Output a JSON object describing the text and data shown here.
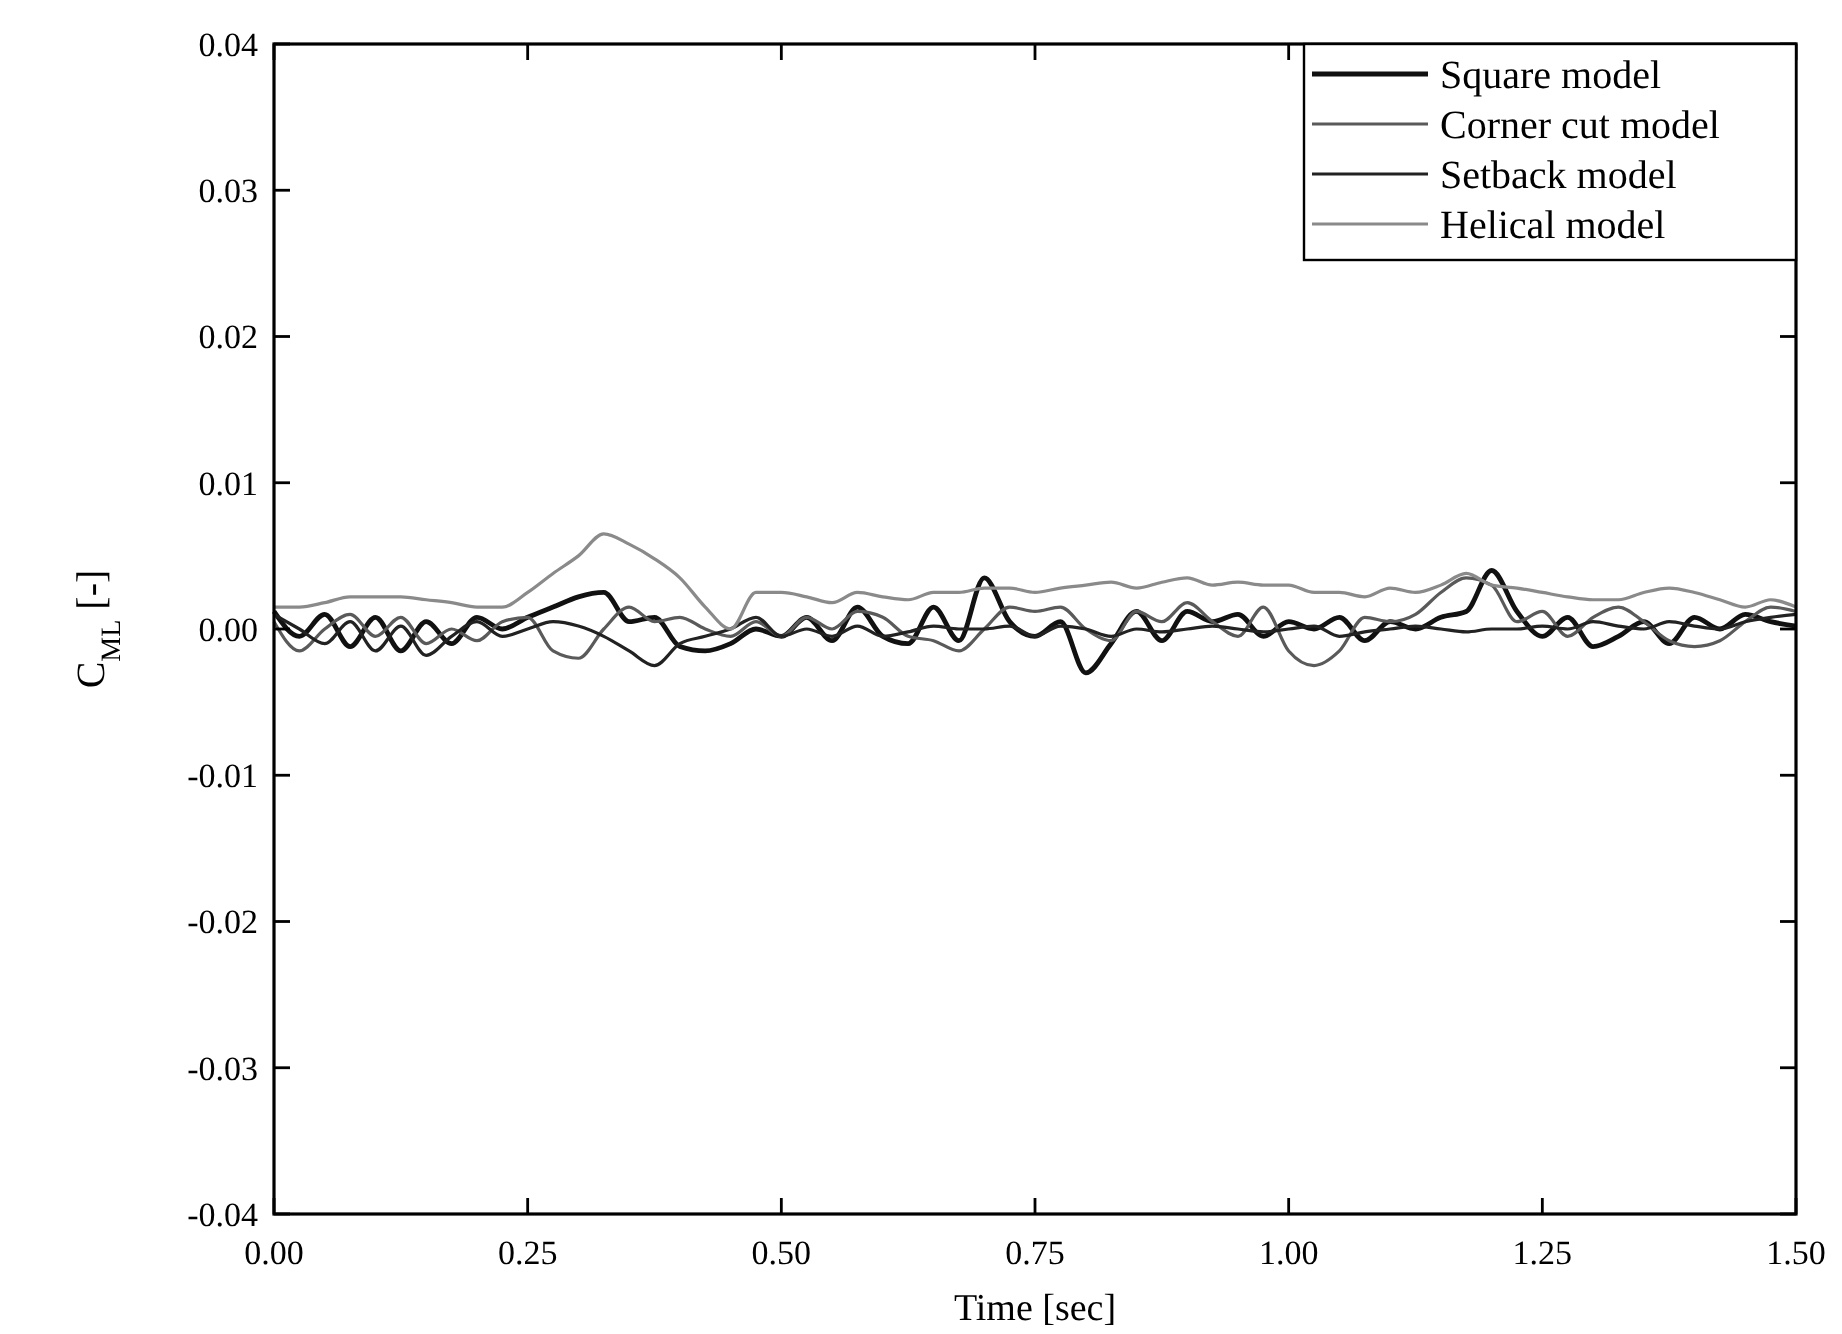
{
  "chart_data": {
    "type": "line",
    "xlabel": "Time [sec]",
    "ylabel": "C$_{ML}$ [-]",
    "xlim": [
      0,
      1.5
    ],
    "ylim": [
      -0.04,
      0.04
    ],
    "xticks": [
      {
        "value": 0,
        "label": "0.00"
      },
      0.25,
      {
        "value": 0.5,
        "label": "0.50"
      },
      0.75,
      {
        "value": 1,
        "label": "1.00"
      },
      1.25,
      {
        "value": 1.5,
        "label": "1.50"
      }
    ],
    "yticks": [
      {
        "value": -0.04,
        "label": "-0.04"
      },
      {
        "value": -0.03,
        "label": "-0.03"
      },
      {
        "value": -0.02,
        "label": "-0.02"
      },
      {
        "value": -0.01,
        "label": "-0.01"
      },
      {
        "value": 0,
        "label": "0.00"
      },
      {
        "value": 0.01,
        "label": "0.01"
      },
      {
        "value": 0.02,
        "label": "0.02"
      },
      {
        "value": 0.03,
        "label": "0.03"
      },
      {
        "value": 0.04,
        "label": "0.04"
      }
    ],
    "grid": false,
    "legend": "top right",
    "line_style": "solid",
    "marker": "none",
    "x": [
      0,
      0.025,
      0.05,
      0.075,
      0.1,
      0.125,
      0.15,
      0.175,
      0.2,
      0.225,
      0.25,
      0.275,
      0.3,
      0.325,
      0.35,
      0.375,
      0.4,
      0.425,
      0.45,
      0.475,
      0.5,
      0.525,
      0.55,
      0.575,
      0.6,
      0.625,
      0.65,
      0.675,
      0.7,
      0.725,
      0.75,
      0.775,
      0.8,
      0.825,
      0.85,
      0.875,
      0.9,
      0.925,
      0.95,
      0.975,
      1,
      1.025,
      1.05,
      1.075,
      1.1,
      1.125,
      1.15,
      1.175,
      1.2,
      1.225,
      1.25,
      1.275,
      1.3,
      1.325,
      1.35,
      1.375,
      1.4,
      1.425,
      1.45,
      1.475,
      1.5
    ],
    "series": [
      {
        "name": "Square model",
        "color": "#111111",
        "values": [
          0.0012,
          -0.0005,
          0.001,
          -0.0012,
          0.0008,
          -0.0015,
          0.0005,
          -0.001,
          0.0008,
          0,
          0.0008,
          0.0015,
          0.0022,
          0.0025,
          0.0005,
          0.0008,
          -0.0012,
          -0.0015,
          -0.001,
          0,
          -0.0005,
          0.0008,
          -0.0008,
          0.0015,
          -0.0005,
          -0.001,
          0.0015,
          -0.0008,
          0.0035,
          0.0005,
          -0.0005,
          0.0005,
          -0.003,
          -0.001,
          0.0012,
          -0.0008,
          0.0012,
          0.0005,
          0.001,
          -0.0005,
          0.0005,
          0,
          0.0008,
          -0.0008,
          0.0005,
          0,
          0.0008,
          0.0012,
          0.004,
          0.0012,
          -0.0005,
          0.0008,
          -0.0012,
          -0.0005,
          0.0005,
          -0.001,
          0.0008,
          0,
          0.001,
          0.0005,
          0.0002
        ]
      },
      {
        "name": "Corner cut model",
        "color": "#5a5a5a",
        "values": [
          0.0005,
          -0.0015,
          0,
          0.001,
          -0.0005,
          0.0008,
          -0.001,
          0,
          -0.0008,
          0.0005,
          0.0008,
          -0.0015,
          -0.002,
          0,
          0.0015,
          0.0005,
          0.0008,
          0,
          -0.0005,
          0.0005,
          -0.0005,
          0.0008,
          0,
          0.0012,
          0.0008,
          -0.0005,
          -0.0008,
          -0.0015,
          0,
          0.0015,
          0.0012,
          0.0015,
          0,
          -0.0008,
          0.0012,
          0.0005,
          0.0018,
          0.0005,
          -0.0005,
          0.0015,
          -0.0015,
          -0.0025,
          -0.0015,
          0.0008,
          0.0005,
          0.001,
          0.0025,
          0.0035,
          0.003,
          0.0005,
          0.0012,
          -0.0005,
          0.0008,
          0.0015,
          0.0005,
          -0.0008,
          -0.0012,
          -0.0008,
          0.0005,
          0.0015,
          0.0012
        ]
      },
      {
        "name": "Setback model",
        "color": "#222222",
        "values": [
          0.001,
          0,
          -0.001,
          0.0005,
          -0.0015,
          0.0002,
          -0.0018,
          -0.0005,
          0.0005,
          -0.0005,
          0,
          0.0005,
          0.0002,
          -0.0005,
          -0.0015,
          -0.0025,
          -0.001,
          -0.0005,
          0,
          0.0008,
          -0.0005,
          0,
          -0.0005,
          0.0002,
          -0.0005,
          -0.0002,
          0.0002,
          0,
          0,
          0.0002,
          -0.0005,
          0.0002,
          0,
          -0.0005,
          0,
          -0.0002,
          0,
          0.0002,
          0,
          -0.0002,
          0,
          0.0002,
          -0.0005,
          -0.0002,
          0,
          0.0002,
          0,
          -0.0002,
          0,
          0,
          0.0002,
          0,
          0.0005,
          0.0002,
          0,
          0.0005,
          0.0002,
          0,
          0.0005,
          0.0008,
          0.001
        ]
      },
      {
        "name": "Helical model",
        "color": "#8a8a8a",
        "values": [
          0.0015,
          0.0015,
          0.0018,
          0.0022,
          0.0022,
          0.0022,
          0.002,
          0.0018,
          0.0015,
          0.0015,
          0.0025,
          0.0038,
          0.005,
          0.0065,
          0.0058,
          0.0048,
          0.0035,
          0.0015,
          0,
          0.0025,
          0.0025,
          0.0022,
          0.0018,
          0.0025,
          0.0022,
          0.002,
          0.0025,
          0.0025,
          0.0028,
          0.0028,
          0.0025,
          0.0028,
          0.003,
          0.0032,
          0.0028,
          0.0032,
          0.0035,
          0.003,
          0.0032,
          0.003,
          0.003,
          0.0025,
          0.0025,
          0.0022,
          0.0028,
          0.0025,
          0.003,
          0.0038,
          0.003,
          0.0028,
          0.0025,
          0.0022,
          0.002,
          0.002,
          0.0025,
          0.0028,
          0.0025,
          0.002,
          0.0015,
          0.002,
          0.0015
        ]
      }
    ]
  }
}
